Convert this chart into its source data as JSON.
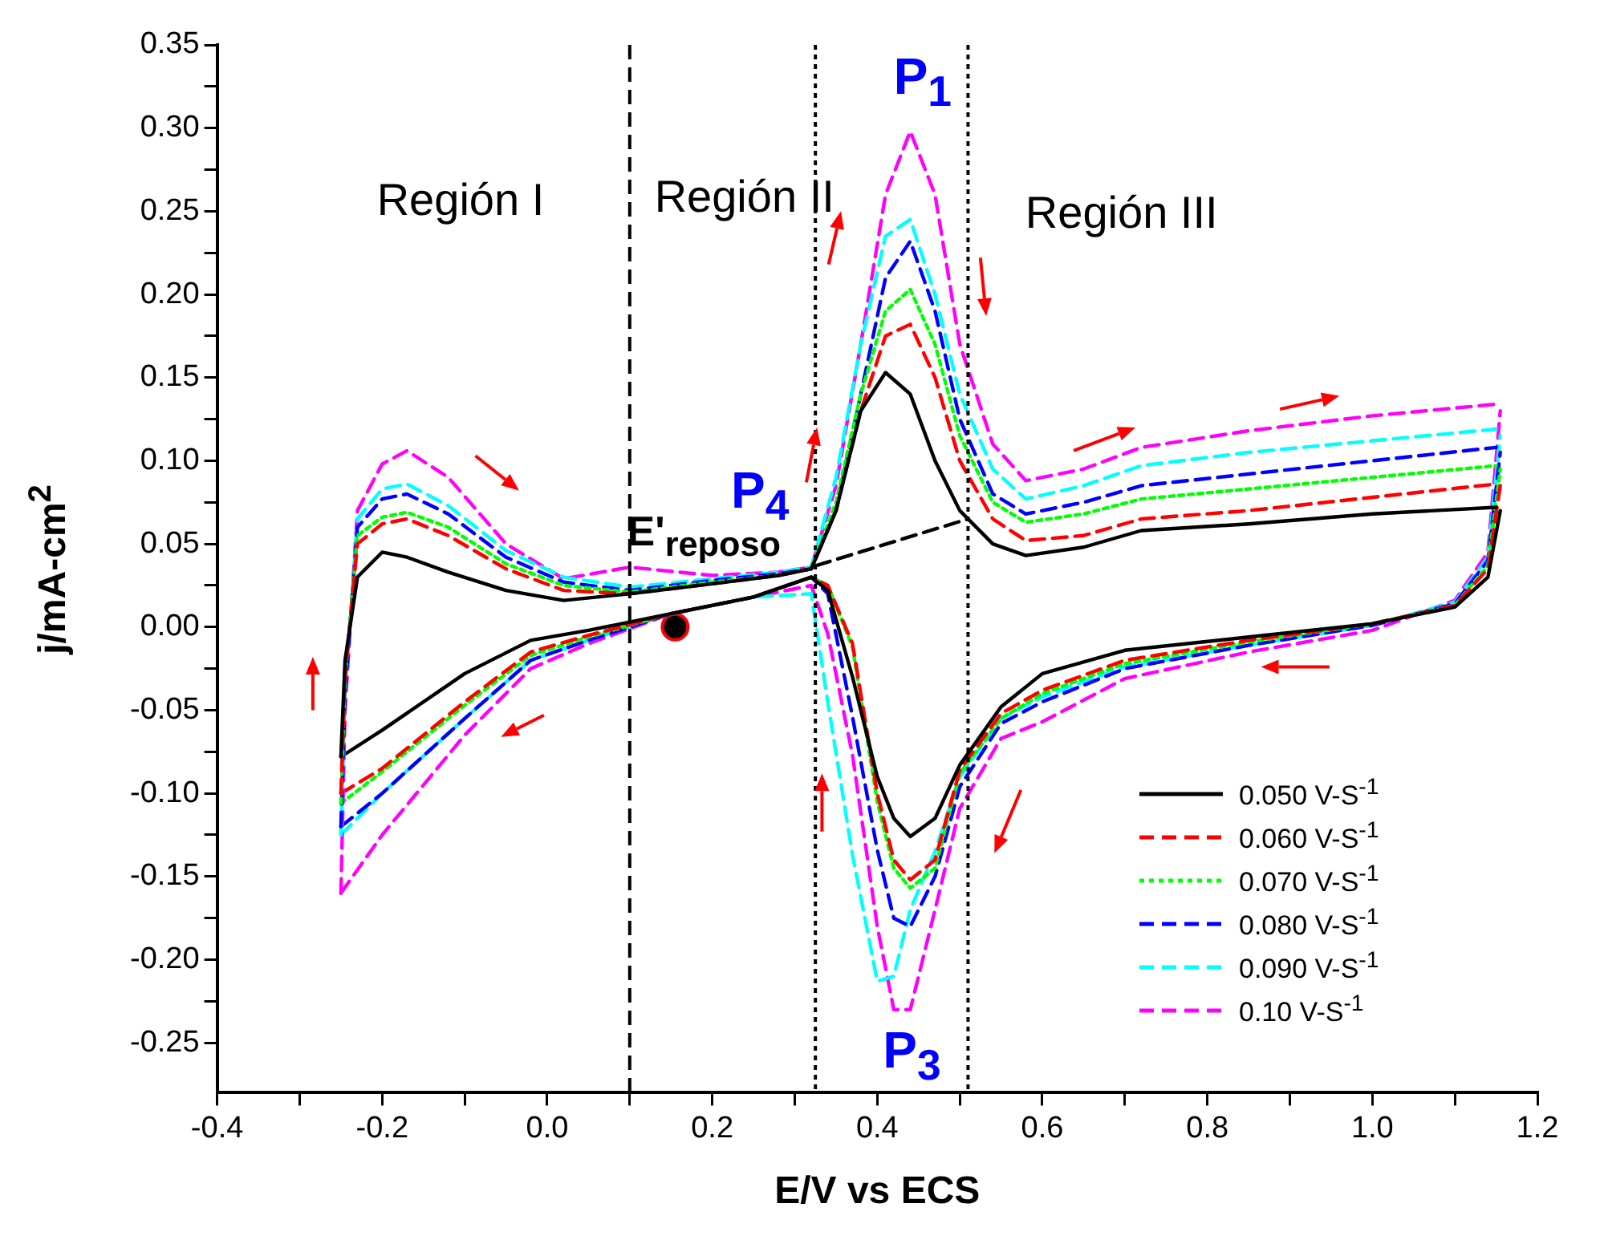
{
  "chart_data": {
    "type": "line",
    "xlabel": "E/V vs ECS",
    "ylabel": "j/mA-cm$^{2}$",
    "xlim": [
      -0.4,
      1.2
    ],
    "ylim": [
      -0.28,
      0.35
    ],
    "xticks": [
      -0.4,
      {
        "value": -0.3,
        "label": null
      },
      -0.2,
      {
        "value": -0.1,
        "label": null
      },
      {
        "value": 0,
        "label": "0.0"
      },
      {
        "value": 0.1,
        "label": null
      },
      0.2,
      {
        "value": 0.3,
        "label": null
      },
      0.4,
      {
        "value": 0.5,
        "label": null
      },
      0.6,
      {
        "value": 0.7,
        "label": null
      },
      0.8,
      {
        "value": 0.9,
        "label": null
      },
      {
        "value": 1,
        "label": "1.0"
      },
      {
        "value": 1.1,
        "label": null
      },
      1.2
    ],
    "yticks": [
      {
        "value": -0.25,
        "label": "-0.25"
      },
      {
        "value": -0.225,
        "label": null
      },
      {
        "value": -0.2,
        "label": "-0.20"
      },
      {
        "value": -0.175,
        "label": null
      },
      {
        "value": -0.15,
        "label": "-0.15"
      },
      {
        "value": -0.125,
        "label": null
      },
      {
        "value": -0.1,
        "label": "-0.10"
      },
      {
        "value": -0.075,
        "label": null
      },
      {
        "value": -0.05,
        "label": "-0.05"
      },
      {
        "value": -0.025,
        "label": null
      },
      {
        "value": 0,
        "label": "0.00"
      },
      {
        "value": 0.025,
        "label": null
      },
      0.05,
      {
        "value": 0.075,
        "label": null
      },
      {
        "value": 0.1,
        "label": "0.10"
      },
      {
        "value": 0.125,
        "label": null
      },
      0.15,
      {
        "value": 0.175,
        "label": null
      },
      {
        "value": 0.2,
        "label": "0.20"
      },
      {
        "value": 0.225,
        "label": null
      },
      0.25,
      {
        "value": 0.275,
        "label": null
      },
      {
        "value": 0.3,
        "label": "0.30"
      },
      {
        "value": 0.325,
        "label": null
      },
      0.35
    ],
    "legend": "bottom right",
    "x": [
      -0.25,
      -0.245,
      -0.23,
      -0.2,
      -0.17,
      -0.12,
      -0.05,
      0.02,
      0.1,
      0.2,
      0.28,
      0.32,
      0.35,
      0.38,
      0.41,
      0.44,
      0.47,
      0.5,
      0.54,
      0.58,
      0.65,
      0.72,
      0.85,
      1.0,
      1.15
    ],
    "series": [
      {
        "name": "0.050 V-S$^{-1}$",
        "color": "#000000",
        "line_style": "solid",
        "values": [
          -0.078,
          -0.02,
          0.03,
          0.045,
          0.042,
          0.033,
          0.022,
          0.016,
          0.02,
          0.026,
          0.031,
          0.035,
          0.07,
          0.13,
          0.153,
          0.14,
          0.1,
          0.07,
          0.05,
          0.043,
          0.048,
          0.058,
          0.062,
          0.068,
          0.072
        ]
      },
      {
        "name": "0.060 V-S$^{-1}$",
        "color": "#ff0000",
        "line_style": "dashed",
        "values": [
          -0.1,
          -0.03,
          0.05,
          0.062,
          0.065,
          0.055,
          0.035,
          0.022,
          0.02,
          0.026,
          0.031,
          0.035,
          0.07,
          0.13,
          0.175,
          0.182,
          0.15,
          0.1,
          0.065,
          0.052,
          0.055,
          0.065,
          0.07,
          0.078,
          0.086
        ]
      },
      {
        "name": "0.070 V-S$^{-1}$",
        "color": "#00ff00",
        "line_style": "dotted",
        "values": [
          -0.106,
          -0.03,
          0.055,
          0.066,
          0.069,
          0.06,
          0.038,
          0.025,
          0.021,
          0.027,
          0.031,
          0.035,
          0.075,
          0.14,
          0.19,
          0.203,
          0.17,
          0.115,
          0.075,
          0.063,
          0.068,
          0.077,
          0.083,
          0.09,
          0.097
        ]
      },
      {
        "name": "0.080 V-S$^{-1}$",
        "color": "#0000ff",
        "line_style": "dashed",
        "values": [
          -0.12,
          -0.04,
          0.06,
          0.077,
          0.08,
          0.068,
          0.042,
          0.027,
          0.022,
          0.028,
          0.032,
          0.035,
          0.07,
          0.14,
          0.21,
          0.232,
          0.19,
          0.125,
          0.08,
          0.068,
          0.075,
          0.085,
          0.092,
          0.1,
          0.108
        ]
      },
      {
        "name": "0.090 V-S$^{-1}$",
        "color": "#00ffff",
        "line_style": "dashed",
        "values": [
          -0.125,
          -0.04,
          0.065,
          0.083,
          0.086,
          0.073,
          0.046,
          0.03,
          0.024,
          0.029,
          0.033,
          0.036,
          0.09,
          0.17,
          0.235,
          0.245,
          0.2,
          0.14,
          0.095,
          0.077,
          0.085,
          0.097,
          0.105,
          0.112,
          0.119
        ]
      },
      {
        "name": "0.10  V-S$^{-1}$",
        "color": "#ff00ff",
        "line_style": "dashed",
        "values": [
          -0.16,
          -0.05,
          0.07,
          0.098,
          0.106,
          0.09,
          0.05,
          0.029,
          0.036,
          0.031,
          0.033,
          0.036,
          0.085,
          0.17,
          0.26,
          0.298,
          0.26,
          0.17,
          0.11,
          0.088,
          0.095,
          0.108,
          0.118,
          0.127,
          0.134
        ]
      },
      {
        "color": "#000000",
        "line_style": "solid",
        "x": [
          -0.25,
          -0.2,
          -0.1,
          -0.02,
          0.05,
          0.15,
          0.25,
          0.32,
          0.34,
          0.37,
          0.4,
          0.42,
          0.44,
          0.47,
          0.5,
          0.55,
          0.6,
          0.7,
          0.85,
          1.0,
          1.1,
          1.14,
          1.155
        ],
        "values": [
          -0.078,
          -0.062,
          -0.028,
          -0.008,
          -0.002,
          0.008,
          0.018,
          0.03,
          0.022,
          -0.03,
          -0.09,
          -0.115,
          -0.126,
          -0.115,
          -0.083,
          -0.048,
          -0.028,
          -0.014,
          -0.006,
          0.002,
          0.012,
          0.03,
          0.07
        ]
      },
      {
        "color": "#ff0000",
        "line_style": "dashed",
        "x": [
          -0.25,
          -0.2,
          -0.1,
          -0.02,
          0.05,
          0.15,
          0.25,
          0.32,
          0.34,
          0.37,
          0.4,
          0.42,
          0.44,
          0.47,
          0.5,
          0.55,
          0.6,
          0.7,
          0.85,
          1.0,
          1.1,
          1.14,
          1.155
        ],
        "values": [
          -0.1,
          -0.085,
          -0.045,
          -0.015,
          -0.005,
          0.008,
          0.018,
          0.03,
          0.025,
          -0.01,
          -0.1,
          -0.14,
          -0.152,
          -0.14,
          -0.086,
          -0.052,
          -0.038,
          -0.02,
          -0.008,
          0.002,
          0.013,
          0.035,
          0.085
        ]
      },
      {
        "color": "#00ff00",
        "line_style": "dotted",
        "x": [
          -0.25,
          -0.2,
          -0.1,
          -0.02,
          0.05,
          0.15,
          0.25,
          0.32,
          0.34,
          0.37,
          0.4,
          0.42,
          0.44,
          0.47,
          0.5,
          0.55,
          0.6,
          0.7,
          0.85,
          1.0,
          1.1,
          1.14,
          1.155
        ],
        "values": [
          -0.106,
          -0.087,
          -0.047,
          -0.017,
          -0.006,
          0.008,
          0.018,
          0.03,
          0.025,
          -0.012,
          -0.105,
          -0.145,
          -0.157,
          -0.145,
          -0.088,
          -0.055,
          -0.04,
          -0.022,
          -0.009,
          0.002,
          0.013,
          0.037,
          0.095
        ]
      },
      {
        "color": "#0000ff",
        "line_style": "dashed",
        "x": [
          -0.25,
          -0.2,
          -0.1,
          -0.02,
          0.05,
          0.15,
          0.25,
          0.32,
          0.34,
          0.37,
          0.4,
          0.42,
          0.44,
          0.47,
          0.5,
          0.55,
          0.6,
          0.7,
          0.85,
          1.0,
          1.1,
          1.14,
          1.155
        ],
        "values": [
          -0.12,
          -0.1,
          -0.055,
          -0.02,
          -0.008,
          0.008,
          0.018,
          0.03,
          0.02,
          -0.054,
          -0.134,
          -0.175,
          -0.18,
          -0.15,
          -0.096,
          -0.058,
          -0.045,
          -0.025,
          -0.011,
          0.001,
          0.014,
          0.04,
          0.105
        ]
      },
      {
        "color": "#00ffff",
        "line_style": "dashed",
        "x": [
          -0.25,
          -0.2,
          -0.1,
          -0.02,
          0.05,
          0.15,
          0.25,
          0.32,
          0.34,
          0.37,
          0.4,
          0.42,
          0.44,
          0.47,
          0.5,
          0.55,
          0.6,
          0.7,
          0.85,
          1.0,
          1.1,
          1.14,
          1.155
        ],
        "values": [
          -0.125,
          -0.1,
          -0.055,
          -0.02,
          -0.008,
          0.008,
          0.018,
          0.02,
          -0.045,
          -0.137,
          -0.213,
          -0.21,
          -0.17,
          -0.135,
          -0.09,
          -0.055,
          -0.042,
          -0.024,
          -0.011,
          0.001,
          0.015,
          0.042,
          0.115
        ]
      },
      {
        "color": "#ff00ff",
        "line_style": "dashed",
        "x": [
          -0.25,
          -0.2,
          -0.1,
          -0.02,
          0.05,
          0.15,
          0.25,
          0.32,
          0.34,
          0.37,
          0.4,
          0.42,
          0.44,
          0.47,
          0.5,
          0.55,
          0.6,
          0.7,
          0.85,
          1.0,
          1.1,
          1.14,
          1.155
        ],
        "values": [
          -0.16,
          -0.125,
          -0.065,
          -0.025,
          -0.01,
          0.008,
          0.018,
          0.025,
          -0.004,
          -0.077,
          -0.18,
          -0.23,
          -0.23,
          -0.17,
          -0.109,
          -0.067,
          -0.057,
          -0.031,
          -0.015,
          -0.002,
          0.016,
          0.045,
          0.13
        ]
      },
      {
        "type": "line",
        "color": "#000000",
        "line_style": "dashed",
        "x": [
          0.3,
          0.51
        ],
        "values": [
          0.033,
          0.065
        ]
      },
      {
        "type": "scatter",
        "color": "#000000",
        "marker": "circle",
        "x": [
          0.155
        ],
        "values": [
          0.0
        ]
      }
    ],
    "ref_lines": [
      {
        "axis": "x",
        "value": 0.1,
        "color": "#000000",
        "line_style": "dashed"
      },
      {
        "axis": "x",
        "value": 0.325,
        "color": "#000000",
        "line_style": "dotted"
      },
      {
        "axis": "x",
        "value": 0.51,
        "color": "#000000",
        "line_style": "dotted"
      }
    ],
    "annotations": [
      "Región I",
      "Región II",
      "Región III",
      "P$_{1}$",
      "P$_{4}$",
      "P$_{3}$",
      "E'$_{reposo}$"
    ]
  }
}
